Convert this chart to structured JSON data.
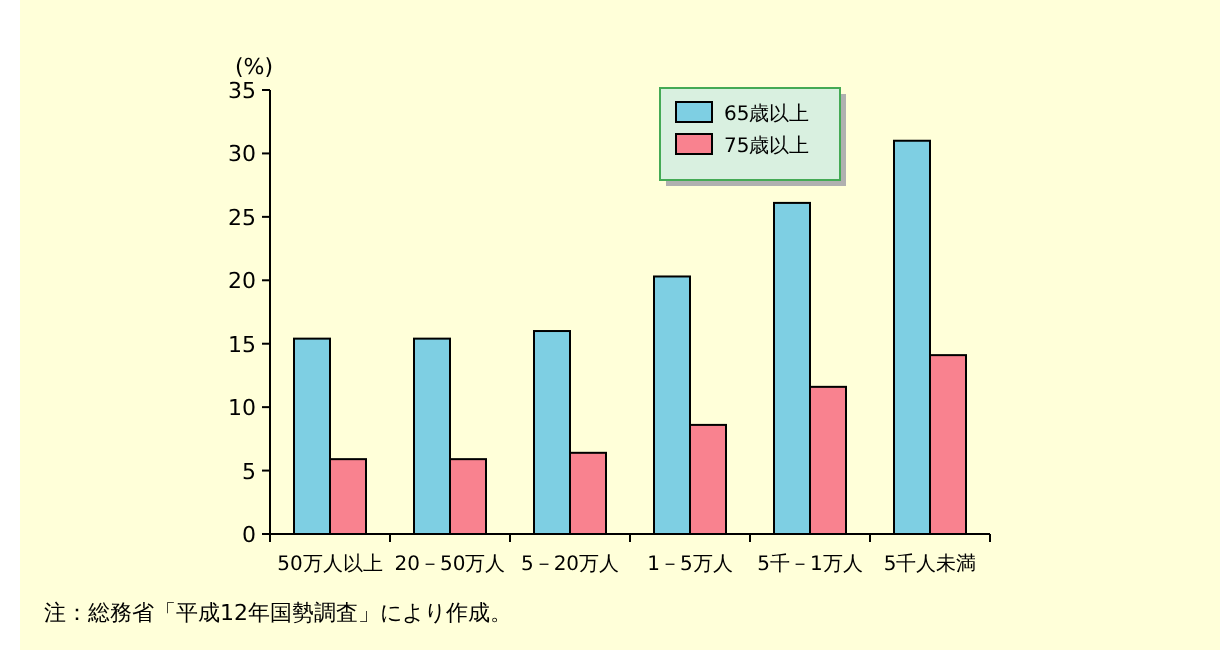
{
  "chart_data": {
    "type": "bar",
    "ylabel": "(%)",
    "categories": [
      "50万人以上",
      "20－50万人",
      "5－20万人",
      "1－5万人",
      "5千－1万人",
      "5千人未満"
    ],
    "series": [
      {
        "name": "65歳以上",
        "color": "#7ecfe3",
        "values": [
          15.4,
          15.4,
          16.0,
          20.3,
          26.1,
          31.0
        ]
      },
      {
        "name": "75歳以上",
        "color": "#f9828f",
        "values": [
          5.9,
          5.9,
          6.4,
          8.6,
          11.6,
          14.1
        ]
      }
    ],
    "ylim": [
      0,
      35
    ],
    "yticks": [
      0,
      5,
      10,
      15,
      20,
      25,
      30,
      35
    ],
    "grid": false,
    "legend": "top right",
    "annotations": [
      "注：総務省「平成12年国勢調査」により作成。"
    ]
  }
}
